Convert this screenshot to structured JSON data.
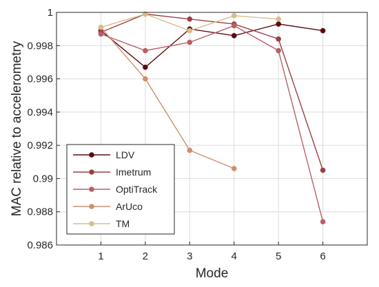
{
  "chart_data": {
    "type": "line",
    "xlabel": "Mode",
    "ylabel": "MAC relative to accelerometry",
    "xlim": [
      0,
      7
    ],
    "ylim": [
      0.986,
      1.0
    ],
    "xticks": [
      "1",
      "2",
      "3",
      "4",
      "5",
      "6"
    ],
    "yticks": [
      "0.986",
      "0.988",
      "0.99",
      "0.992",
      "0.994",
      "0.996",
      "0.998",
      "1"
    ],
    "grid": true,
    "legend_position": "bottom-left",
    "series": [
      {
        "name": "LDV",
        "color": "#5c0a0f",
        "x": [
          1,
          2,
          3,
          4,
          5,
          6
        ],
        "values": [
          0.9989,
          0.9967,
          0.999,
          0.9986,
          0.9993,
          0.9989
        ]
      },
      {
        "name": "Imetrum",
        "color": "#9c3e44",
        "x": [
          1,
          2,
          3,
          4,
          5,
          6
        ],
        "values": [
          0.9988,
          0.9999,
          0.9996,
          0.9993,
          0.9984,
          0.9905
        ]
      },
      {
        "name": "OptiTrack",
        "color": "#b85f66",
        "x": [
          1,
          2,
          3,
          4,
          5,
          6
        ],
        "values": [
          0.9987,
          0.9977,
          0.9982,
          0.9992,
          0.9977,
          0.9874
        ]
      },
      {
        "name": "ArUco",
        "color": "#cc8f6e",
        "x": [
          1,
          2,
          3,
          4
        ],
        "values": [
          0.9991,
          0.996,
          0.9917,
          0.9906
        ]
      },
      {
        "name": "TM",
        "color": "#d7bd8c",
        "x": [
          1,
          2,
          3,
          4,
          5
        ],
        "values": [
          0.9991,
          0.9999,
          0.9989,
          0.9998,
          0.9996
        ]
      }
    ]
  }
}
